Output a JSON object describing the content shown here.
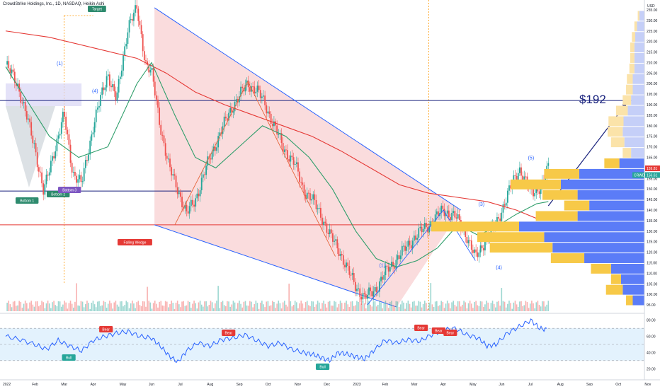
{
  "header": {
    "title": "CrowdStrike Holdings, Inc., 1D, NASDAQ, Heikin Ashi"
  },
  "colors": {
    "up": "#26a69a",
    "down": "#ef5350",
    "wedge_fill": "#f8d0d2",
    "wedge_line": "#2962ff",
    "ma_fast": "#2f9e6b",
    "ma_slow": "#e53935",
    "hline_blue": "#1a237e",
    "hline_red": "#e53935",
    "vp_up": "#f7c948",
    "vp_down": "#5b7cf7",
    "rsi_line": "#2962ff",
    "rsi_band": "#e3f2fd"
  },
  "annotations": {
    "target": "Target",
    "bottom1": "Bottom 1",
    "bottom2": "Bottom 2",
    "bottom3": "Bottom 3",
    "falling_wedge": "Falling Wedge",
    "w1_top": "(1)",
    "w4_top": "(4)",
    "w1_bottom": "(1)",
    "w3": "(3)",
    "w4": "(4)",
    "w5": "(5)",
    "price_target": "$192",
    "bear": "Bear",
    "bull": "Bull"
  },
  "price_labels": {
    "currency": "USD",
    "last": "159.81",
    "crwd": "CRWD",
    "crwd_value": "156.61"
  },
  "chart_data": {
    "type": "candlestick",
    "title": "CrowdStrike Holdings, Inc., 1D, NASDAQ, Heikin Ashi",
    "y_axis": {
      "unit": "USD",
      "ylim": [
        92,
        237
      ],
      "ticks": [
        95,
        100,
        105,
        110,
        115,
        120,
        125,
        130,
        135,
        140,
        145,
        150,
        155,
        160,
        165,
        170,
        175,
        180,
        185,
        190,
        195,
        200,
        205,
        210,
        215,
        220,
        225,
        230,
        235
      ]
    },
    "x_axis": {
      "ticks": [
        "2022",
        "Feb",
        "Mar",
        "Apr",
        "May",
        "Jun",
        "Jul",
        "Aug",
        "Sep",
        "Oct",
        "Nov",
        "Dec",
        "2023",
        "Feb",
        "Mar",
        "Apr",
        "May",
        "Jun",
        "Jul",
        "Aug",
        "Sep",
        "Oct",
        "Nov"
      ]
    },
    "price_path": [
      [
        0,
        209
      ],
      [
        0.4,
        200
      ],
      [
        1.0,
        170
      ],
      [
        1.3,
        148
      ],
      [
        1.6,
        165
      ],
      [
        2.0,
        185
      ],
      [
        2.3,
        158
      ],
      [
        2.6,
        152
      ],
      [
        3.0,
        180
      ],
      [
        3.5,
        205
      ],
      [
        3.8,
        192
      ],
      [
        4.2,
        228
      ],
      [
        4.5,
        235
      ],
      [
        4.8,
        210
      ],
      [
        5.0,
        205
      ],
      [
        5.3,
        180
      ],
      [
        5.6,
        160
      ],
      [
        5.9,
        150
      ],
      [
        6.2,
        138
      ],
      [
        6.5,
        145
      ],
      [
        7.0,
        165
      ],
      [
        7.4,
        178
      ],
      [
        7.8,
        190
      ],
      [
        8.3,
        200
      ],
      [
        8.6,
        197
      ],
      [
        8.9,
        190
      ],
      [
        9.2,
        180
      ],
      [
        9.5,
        170
      ],
      [
        9.9,
        162
      ],
      [
        10.2,
        150
      ],
      [
        10.5,
        145
      ],
      [
        10.8,
        138
      ],
      [
        11.1,
        128
      ],
      [
        11.4,
        122
      ],
      [
        11.7,
        112
      ],
      [
        12.0,
        104
      ],
      [
        12.3,
        98
      ],
      [
        12.7,
        103
      ],
      [
        13.1,
        112
      ],
      [
        13.6,
        120
      ],
      [
        14.0,
        127
      ],
      [
        14.5,
        133
      ],
      [
        15.0,
        140
      ],
      [
        15.4,
        137
      ],
      [
        15.8,
        128
      ],
      [
        16.1,
        117
      ],
      [
        16.4,
        125
      ],
      [
        16.8,
        133
      ],
      [
        17.2,
        147
      ],
      [
        17.6,
        160
      ],
      [
        18.0,
        148
      ],
      [
        18.4,
        152
      ],
      [
        18.6,
        160
      ]
    ],
    "ma_fast": [
      [
        0,
        208
      ],
      [
        1.5,
        175
      ],
      [
        2.5,
        165
      ],
      [
        3.5,
        170
      ],
      [
        4.5,
        200
      ],
      [
        5.0,
        210
      ],
      [
        5.8,
        185
      ],
      [
        6.5,
        165
      ],
      [
        7.2,
        160
      ],
      [
        8.0,
        170
      ],
      [
        8.8,
        180
      ],
      [
        9.6,
        175
      ],
      [
        10.4,
        165
      ],
      [
        11.2,
        150
      ],
      [
        12.0,
        130
      ],
      [
        12.7,
        117
      ],
      [
        13.4,
        113
      ],
      [
        14.1,
        116
      ],
      [
        14.8,
        122
      ],
      [
        15.5,
        133
      ],
      [
        16.2,
        128
      ],
      [
        16.8,
        132
      ],
      [
        17.5,
        138
      ],
      [
        18.2,
        143
      ],
      [
        18.6,
        144
      ]
    ],
    "ma_slow": [
      [
        0,
        225
      ],
      [
        1.5,
        222
      ],
      [
        3,
        217
      ],
      [
        4.5,
        212
      ],
      [
        5.5,
        205
      ],
      [
        6.5,
        196
      ],
      [
        7.5,
        190
      ],
      [
        8.5,
        185
      ],
      [
        9.5,
        180
      ],
      [
        10.5,
        175
      ],
      [
        11.5,
        168
      ],
      [
        12.5,
        160
      ],
      [
        13.5,
        152
      ],
      [
        14.5,
        148
      ],
      [
        15.5,
        146
      ],
      [
        16.5,
        144
      ],
      [
        17.5,
        140
      ],
      [
        18.2,
        136
      ],
      [
        18.6,
        136
      ]
    ],
    "hlines": [
      {
        "value": 192
      },
      {
        "value": 149
      },
      {
        "value": 133
      }
    ],
    "wedge": {
      "upper": [
        [
          5.1,
          236
        ],
        [
          15.6,
          140
        ]
      ],
      "lower": [
        [
          5.1,
          133
        ],
        [
          13.4,
          94
        ]
      ]
    },
    "projection": [
      [
        18.6,
        142
      ],
      [
        21.3,
        191
      ]
    ],
    "wave_points": [
      {
        "label": "(1)",
        "x": 12.9,
        "y": 113
      },
      {
        "label": "(3)",
        "x": 16.3,
        "y": 142
      },
      {
        "label": "(4)",
        "x": 16.9,
        "y": 112
      },
      {
        "label": "(5)",
        "x": 18.0,
        "y": 164
      }
    ],
    "volume_profile": [
      {
        "price": 232,
        "up": 2,
        "down": 6
      },
      {
        "price": 227,
        "up": 3,
        "down": 9
      },
      {
        "price": 222,
        "up": 4,
        "down": 11
      },
      {
        "price": 217,
        "up": 5,
        "down": 12
      },
      {
        "price": 212,
        "up": 5,
        "down": 12
      },
      {
        "price": 207,
        "up": 6,
        "down": 12
      },
      {
        "price": 202,
        "up": 7,
        "down": 14
      },
      {
        "price": 197,
        "up": 8,
        "down": 14
      },
      {
        "price": 192,
        "up": 10,
        "down": 16
      },
      {
        "price": 187,
        "up": 14,
        "down": 20
      },
      {
        "price": 182,
        "up": 18,
        "down": 25
      },
      {
        "price": 177,
        "up": 18,
        "down": 26
      },
      {
        "price": 172,
        "up": 16,
        "down": 24
      },
      {
        "price": 167,
        "up": 10,
        "down": 16
      },
      {
        "price": 162,
        "up": 18,
        "down": 30
      },
      {
        "price": 157,
        "up": 42,
        "down": 78
      },
      {
        "price": 152,
        "up": 60,
        "down": 100
      },
      {
        "price": 147,
        "up": 42,
        "down": 80
      },
      {
        "price": 142,
        "up": 30,
        "down": 66
      },
      {
        "price": 137,
        "up": 50,
        "down": 80
      },
      {
        "price": 132,
        "up": 105,
        "down": 150
      },
      {
        "price": 127,
        "up": 80,
        "down": 120
      },
      {
        "price": 122,
        "up": 75,
        "down": 110
      },
      {
        "price": 117,
        "up": 40,
        "down": 72
      },
      {
        "price": 112,
        "up": 24,
        "down": 40
      },
      {
        "price": 107,
        "up": 12,
        "down": 28
      },
      {
        "price": 102,
        "up": 20,
        "down": 26
      },
      {
        "price": 97,
        "up": 8,
        "down": 14
      }
    ],
    "rsi": {
      "ylim": [
        15,
        85
      ],
      "ticks": [
        20,
        40,
        60,
        80
      ],
      "band": [
        30,
        70
      ],
      "values": [
        [
          0,
          60
        ],
        [
          0.5,
          56
        ],
        [
          1.0,
          50
        ],
        [
          1.4,
          44
        ],
        [
          1.8,
          55
        ],
        [
          2.2,
          48
        ],
        [
          2.6,
          42
        ],
        [
          3.0,
          55
        ],
        [
          3.4,
          60
        ],
        [
          3.8,
          64
        ],
        [
          4.2,
          66
        ],
        [
          4.6,
          60
        ],
        [
          5.0,
          58
        ],
        [
          5.3,
          48
        ],
        [
          5.6,
          36
        ],
        [
          5.9,
          28
        ],
        [
          6.2,
          42
        ],
        [
          6.6,
          52
        ],
        [
          7.0,
          48
        ],
        [
          7.4,
          56
        ],
        [
          7.8,
          58
        ],
        [
          8.2,
          62
        ],
        [
          8.6,
          55
        ],
        [
          9.0,
          48
        ],
        [
          9.4,
          52
        ],
        [
          9.8,
          44
        ],
        [
          10.2,
          40
        ],
        [
          10.5,
          38
        ],
        [
          10.8,
          34
        ],
        [
          11.1,
          30
        ],
        [
          11.4,
          40
        ],
        [
          11.7,
          38
        ],
        [
          12.0,
          35
        ],
        [
          12.3,
          32
        ],
        [
          12.6,
          42
        ],
        [
          13.0,
          55
        ],
        [
          13.4,
          52
        ],
        [
          13.8,
          56
        ],
        [
          14.2,
          54
        ],
        [
          14.6,
          62
        ],
        [
          15.0,
          68
        ],
        [
          15.4,
          70
        ],
        [
          15.8,
          62
        ],
        [
          16.2,
          58
        ],
        [
          16.5,
          48
        ],
        [
          16.8,
          50
        ],
        [
          17.2,
          64
        ],
        [
          17.6,
          72
        ],
        [
          18.0,
          80
        ],
        [
          18.3,
          70
        ],
        [
          18.6,
          68
        ]
      ]
    }
  }
}
